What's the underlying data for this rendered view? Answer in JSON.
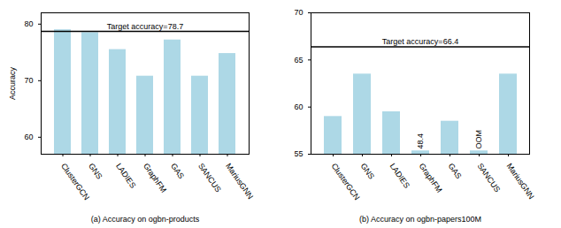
{
  "chart_data": [
    {
      "type": "bar",
      "categories": [
        "ClusterGCN",
        "GNS",
        "LADIES",
        "GraphFM",
        "GAS",
        "SANCUS",
        "MariusGNN"
      ],
      "values": [
        79.0,
        78.5,
        75.5,
        70.8,
        77.2,
        70.8,
        74.8
      ],
      "ylim": [
        57,
        82
      ],
      "yticks": [
        60,
        70,
        80
      ],
      "target_line": 78.7,
      "target_label": "Target accuracy=78.7",
      "ylabel": "Accuracy",
      "xlabel": "(a) Accuracy on ogbn-products",
      "color": "#add8e6"
    },
    {
      "type": "bar",
      "categories": [
        "ClusterGCN",
        "GNS",
        "LADIES",
        "GraphFM",
        "GAS",
        "SANCUS",
        "MariusGNN"
      ],
      "values": [
        59.0,
        63.5,
        59.5,
        55.35,
        58.5,
        55.35,
        63.5
      ],
      "ylim": [
        55,
        70
      ],
      "yticks": [
        55,
        60,
        65,
        70
      ],
      "target_line": 66.4,
      "target_label": "Target accuracy=66.4",
      "xlabel": "(b) Accuracy on ogbn-papers100M",
      "color": "#add8e6",
      "annotations": [
        {
          "category": "GraphFM",
          "text": "48.4"
        },
        {
          "category": "SANCUS",
          "text": "OOM"
        }
      ]
    }
  ]
}
